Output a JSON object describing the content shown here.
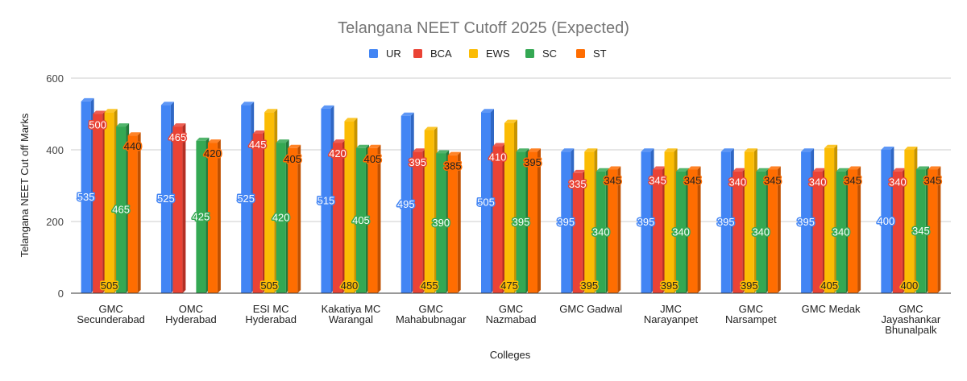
{
  "chart_data": {
    "type": "bar",
    "title": "Telangana NEET Cutoff 2025 (Expected)",
    "xlabel": "Colleges",
    "ylabel": "Telangana NEET Cut off Marks",
    "ylim": [
      0,
      600
    ],
    "yticks": [
      0,
      200,
      400,
      600
    ],
    "grid": true,
    "legend_position": "top-center",
    "style": "3d-clustered-column",
    "categories": [
      [
        "GMC",
        "Secunderabad"
      ],
      [
        "OMC",
        "Hyderabad"
      ],
      [
        "ESI MC",
        "Hyderabad"
      ],
      [
        "Kakatiya MC",
        "Warangal"
      ],
      [
        "GMC",
        "Mahabubnagar"
      ],
      [
        "GMC",
        "Nazmabad"
      ],
      [
        "GMC Gadwal"
      ],
      [
        "JMC",
        "Narayanpet"
      ],
      [
        "GMC",
        "Narsampet"
      ],
      [
        "GMC Medak"
      ],
      [
        "GMC",
        "Jayashankar",
        "Bhunalpalk"
      ]
    ],
    "series": [
      {
        "name": "UR",
        "color": "#4285f4",
        "side": "#2f67c4",
        "label_color": "#4285f4",
        "label_position": "middle",
        "values": [
          535,
          525,
          525,
          515,
          495,
          505,
          395,
          395,
          395,
          395,
          400
        ]
      },
      {
        "name": "BCA",
        "color": "#ea4335",
        "side": "#b32f24",
        "label_color": "#ea4335",
        "label_position": "top",
        "values": [
          500,
          465,
          445,
          420,
          395,
          410,
          335,
          345,
          340,
          340,
          340
        ]
      },
      {
        "name": "EWS",
        "color": "#fbbc04",
        "side": "#c79400",
        "label_color": "#fbbc04",
        "label_position": "bottom",
        "values": [
          505,
          null,
          505,
          480,
          455,
          475,
          395,
          395,
          395,
          405,
          400
        ]
      },
      {
        "name": "SC",
        "color": "#34a853",
        "side": "#237a3b",
        "label_color": "#34a853",
        "label_position": "middle",
        "values": [
          465,
          425,
          420,
          405,
          390,
          395,
          340,
          340,
          340,
          340,
          345
        ]
      },
      {
        "name": "ST",
        "color": "#ff6d01",
        "side": "#c05000",
        "label_color": "#ff6d01",
        "label_position": "top",
        "values": [
          440,
          420,
          405,
          405,
          385,
          395,
          345,
          345,
          345,
          345,
          345
        ]
      }
    ]
  }
}
